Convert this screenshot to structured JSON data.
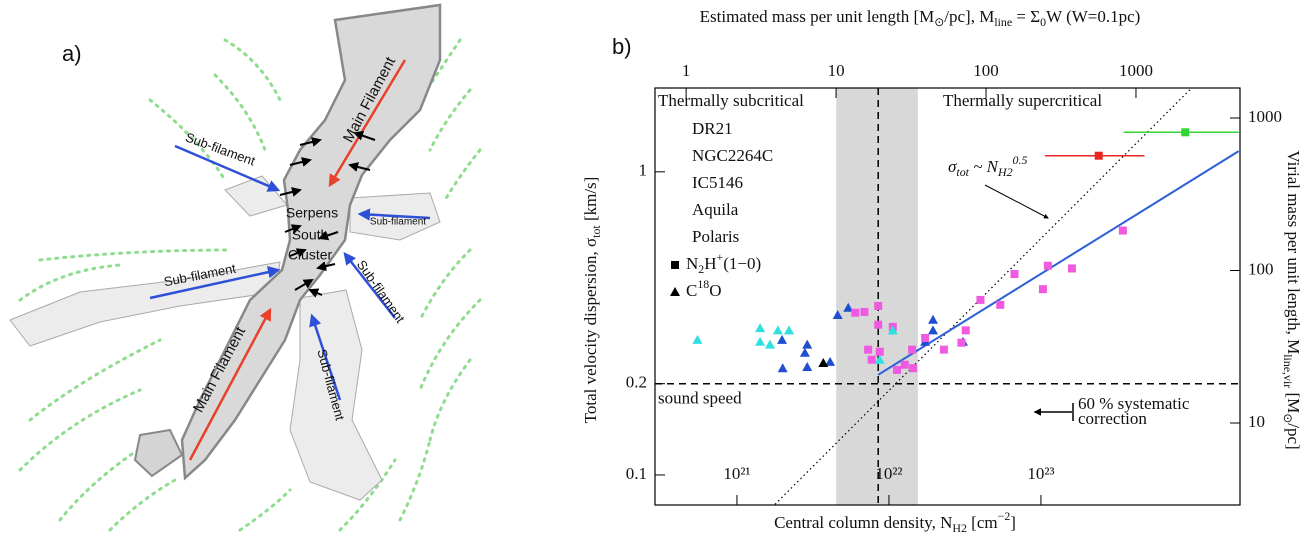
{
  "panel_a": {
    "label": "a)",
    "main_filament": [
      "Main Filament",
      "Main Filament"
    ],
    "sub_filament": [
      "Sub-filament",
      "Sub-filament",
      "Sub-filament",
      "Sub-filament",
      "Sub-filament"
    ],
    "cluster": [
      "Serpens",
      "South",
      "Cluster"
    ]
  },
  "chart_data": {
    "type": "scatter",
    "panel_label": "b)",
    "x_label": [
      "Central column density, N",
      "H2",
      " [cm",
      "−2",
      "]"
    ],
    "y_label": [
      "Total velocity dispersion, σ",
      "tot",
      " [km/s]"
    ],
    "x2_label": [
      "Estimated mass per unit length  [M",
      "⊙",
      "/pc], M",
      "line",
      " = Σ",
      "0",
      "W (W=0.1pc)"
    ],
    "y2_label": [
      "Virial mass per unit length, M",
      "line,vir",
      " [M",
      "⊙",
      "/pc]"
    ],
    "log_x": true,
    "log_y": true,
    "xlim": [
      2.89e+20,
      2.04e+24
    ],
    "xticks": [
      {
        "value": 1e+21,
        "label": "10²¹"
      },
      {
        "value": 1e+22,
        "label": "10²²"
      },
      {
        "value": 1e+23,
        "label": "10²³"
      }
    ],
    "ylim": [
      0.0796,
      1.89
    ],
    "yticks": [
      0.1,
      0.2,
      1
    ],
    "x2lim": [
      0.62,
      4940
    ],
    "x2ticks": [
      1,
      10,
      100,
      1000
    ],
    "y2lim": [
      2.9,
      1573
    ],
    "y2ticks": [
      10,
      100,
      1000
    ],
    "regions": [
      "Thermally subcritical",
      "Thermally supercritical"
    ],
    "band": [
      4.5e+21,
      1.55e+22
    ],
    "vline": 8.5e+21,
    "hline": 0.2,
    "hline_label": "sound speed",
    "fit_line": {
      "color": "#2d5fd8",
      "x": [
        8.5e+21,
        2e+24
      ],
      "values": [
        0.214,
        1.17
      ]
    },
    "scaling_line": {
      "x": [
        1.78e+21,
        9.8e+23
      ],
      "values": [
        0.08,
        1.89
      ],
      "label": [
        "σ",
        "tot",
        " ~ N",
        "H2",
        "0.5"
      ]
    },
    "correction_note": [
      "60 % systematic",
      "correction"
    ],
    "marker_legend": [
      {
        "marker": "square",
        "label": [
          "N",
          "2",
          "H",
          "+",
          "(1−0)"
        ]
      },
      {
        "marker": "triangle",
        "label": [
          "C",
          "18",
          "O"
        ]
      }
    ],
    "series": [
      {
        "name": "DR21",
        "color": "#35d435",
        "marker": "square",
        "x": [
          8.9e+23
        ],
        "values": [
          1.35
        ],
        "x_low": [
          3.5e+23
        ],
        "x_high": [
          2e+24
        ]
      },
      {
        "name": "NGC2264C",
        "color": "#e8281e",
        "marker": "square",
        "x": [
          2.4e+23
        ],
        "values": [
          1.13
        ],
        "x_low": [
          1.06e+23
        ],
        "x_high": [
          4.8e+23
        ]
      },
      {
        "name": "IC5146",
        "color": "#1f4fd0",
        "marker": "triangle",
        "x": [
          5.4e+21,
          4.6e+21,
          1.95e+22,
          1.95e+22,
          1.73e+22,
          3.07e+22,
          2.9e+21,
          2.8e+21,
          2.9e+21,
          4.1e+21,
          1.98e+21,
          2e+21
        ],
        "values": [
          0.356,
          0.337,
          0.325,
          0.3,
          0.275,
          0.275,
          0.269,
          0.253,
          0.227,
          0.236,
          0.279,
          0.225
        ]
      },
      {
        "name": "Aquila",
        "color": "#f05ae0",
        "marker": "square",
        "x": [
          3.46e+23,
          1.6e+23,
          1.11e+23,
          1.03e+23,
          6.7e+22,
          5.4e+22,
          4e+22,
          3.2e+22,
          3e+22,
          1.73e+22,
          1.42e+22,
          1.27e+22,
          1.13e+22,
          1.44e+22,
          8.7e+21,
          7.3e+21,
          1.06e+22,
          8.5e+21,
          8.5e+21,
          6.9e+21,
          6e+21,
          7.7e+21,
          2.3e+22
        ],
        "values": [
          0.64,
          0.48,
          0.49,
          0.41,
          0.46,
          0.364,
          0.378,
          0.3,
          0.273,
          0.283,
          0.259,
          0.231,
          0.222,
          0.225,
          0.255,
          0.259,
          0.308,
          0.361,
          0.313,
          0.345,
          0.343,
          0.24,
          0.259
        ]
      },
      {
        "name": "Polaris",
        "color": "#2fe0e0",
        "marker": "triangle",
        "x": [
          5.5e+20,
          1.42e+21,
          1.65e+21,
          1.86e+21,
          2.2e+21,
          1.42e+21,
          1.06e+22,
          8.7e+21
        ],
        "values": [
          0.279,
          0.275,
          0.269,
          0.3,
          0.3,
          0.305,
          0.3,
          0.24
        ]
      },
      {
        "color": "#000000",
        "marker": "triangle",
        "x": [
          3.7e+21
        ],
        "values": [
          0.234
        ]
      }
    ]
  }
}
